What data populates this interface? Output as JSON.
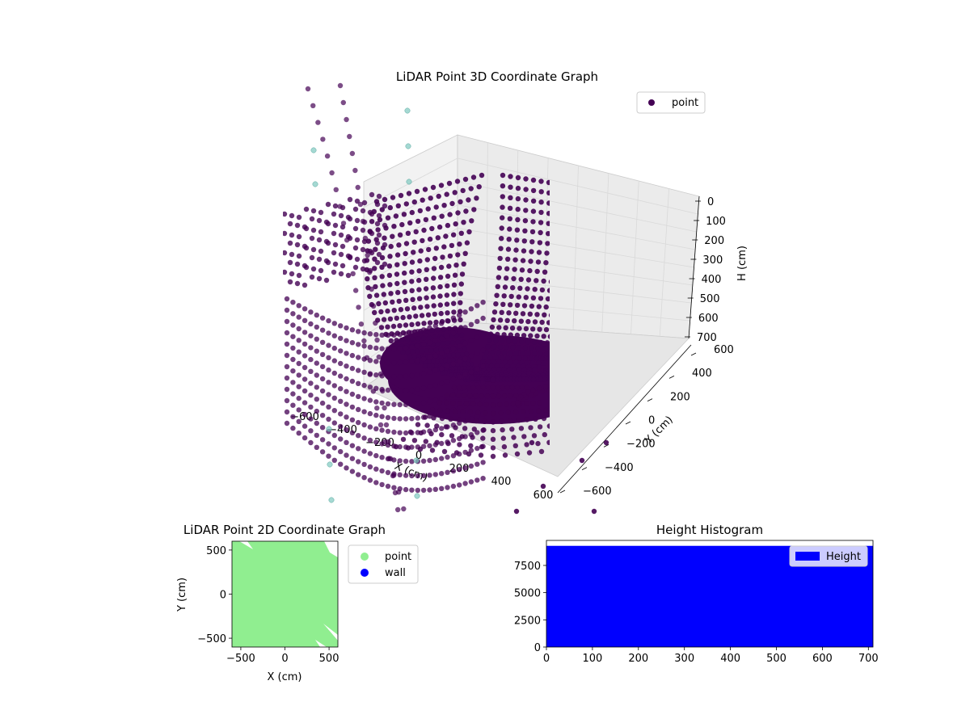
{
  "colors": {
    "point3d": "#440154",
    "point3d_light": "#7fc9c0",
    "point2d": "#90ee90",
    "wall": "#0000ff",
    "hist": "#0000ff",
    "pane_bg": "#f2f2f2",
    "grid": "#d9d9d9"
  },
  "chart_data": [
    {
      "type": "scatter",
      "subtype": "scatter3d",
      "title": "LiDAR Point 3D Coordinate Graph",
      "xlabel": "X (cm)",
      "ylabel": "Y (cm)",
      "zlabel": "H (cm)",
      "xticks": [
        "−600",
        "−400",
        "−200",
        "0",
        "200",
        "400",
        "600"
      ],
      "yticks": [
        "−600",
        "−400",
        "−200",
        "0",
        "200",
        "400",
        "600"
      ],
      "zticks": [
        "0",
        "100",
        "200",
        "300",
        "400",
        "500",
        "600",
        "700"
      ],
      "xlim": [
        -600,
        600
      ],
      "ylim": [
        -600,
        600
      ],
      "zlim": [
        0,
        700
      ],
      "z_inverted": true,
      "legend": {
        "entries": [
          "point"
        ],
        "placement": "top-right"
      },
      "grid": true
    },
    {
      "type": "scatter",
      "title": "LiDAR Point 2D Coordinate Graph",
      "xlabel": "X (cm)",
      "ylabel": "Y (cm)",
      "xticks": [
        "−500",
        "0",
        "500"
      ],
      "yticks": [
        "−500",
        "0",
        "500"
      ],
      "xlim": [
        -600,
        600
      ],
      "ylim": [
        -600,
        600
      ],
      "series": [
        {
          "name": "point",
          "fill": "dense-square"
        },
        {
          "name": "wall"
        }
      ],
      "legend": {
        "entries": [
          "point",
          "wall"
        ],
        "placement": "outside-right"
      }
    },
    {
      "type": "bar",
      "subtype": "histogram",
      "title": "Height Histogram",
      "xticks": [
        "0",
        "100",
        "200",
        "300",
        "400",
        "500",
        "600",
        "700"
      ],
      "yticks": [
        "0",
        "2500",
        "5000",
        "7500"
      ],
      "xlim": [
        0,
        710
      ],
      "ylim": [
        0,
        9800
      ],
      "series": [
        {
          "name": "Height",
          "x": [
            0,
            710
          ],
          "values": [
            9300,
            9300
          ]
        }
      ],
      "legend": {
        "entries": [
          "Height"
        ],
        "placement": "top-right"
      }
    }
  ]
}
